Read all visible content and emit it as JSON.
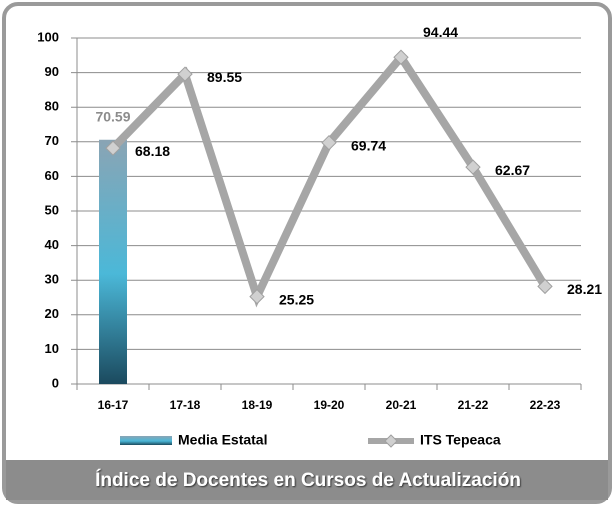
{
  "chart_data": {
    "type": "combo",
    "title": "Índice de Docentes en Cursos de Actualización",
    "categories": [
      "16-17",
      "17-18",
      "18-19",
      "19-20",
      "20-21",
      "21-22",
      "22-23"
    ],
    "series": [
      {
        "name": "Media Estatal",
        "type": "bar",
        "color": "#4bb8d8",
        "values": [
          70.59,
          null,
          null,
          null,
          null,
          null,
          null
        ]
      },
      {
        "name": "ITS Tepeaca",
        "type": "line",
        "color": "#a6a6a6",
        "values": [
          68.18,
          89.55,
          25.25,
          69.74,
          94.44,
          62.67,
          28.21
        ]
      }
    ],
    "ylim": [
      0,
      100
    ],
    "yticks": [
      0,
      10,
      20,
      30,
      40,
      50,
      60,
      70,
      80,
      90,
      100
    ],
    "grid": true
  }
}
